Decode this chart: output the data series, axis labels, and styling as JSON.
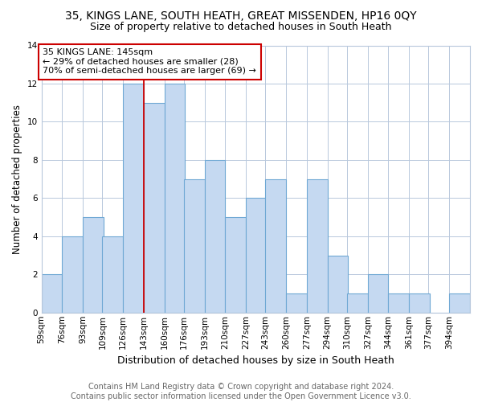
{
  "title": "35, KINGS LANE, SOUTH HEATH, GREAT MISSENDEN, HP16 0QY",
  "subtitle": "Size of property relative to detached houses in South Heath",
  "xlabel": "Distribution of detached houses by size in South Heath",
  "ylabel": "Number of detached properties",
  "bin_labels": [
    "59sqm",
    "76sqm",
    "93sqm",
    "109sqm",
    "126sqm",
    "143sqm",
    "160sqm",
    "176sqm",
    "193sqm",
    "210sqm",
    "227sqm",
    "243sqm",
    "260sqm",
    "277sqm",
    "294sqm",
    "310sqm",
    "327sqm",
    "344sqm",
    "361sqm",
    "377sqm",
    "394sqm"
  ],
  "bin_edges": [
    59,
    76,
    93,
    109,
    126,
    143,
    160,
    176,
    193,
    210,
    227,
    243,
    260,
    277,
    294,
    310,
    327,
    344,
    361,
    377,
    394
  ],
  "counts": [
    2,
    4,
    5,
    4,
    12,
    11,
    12,
    7,
    8,
    5,
    6,
    7,
    1,
    7,
    3,
    1,
    2,
    1,
    1,
    0,
    1
  ],
  "bar_color": "#c5d9f1",
  "bar_edgecolor": "#6fa8d4",
  "vline_x": 143,
  "vline_color": "#cc0000",
  "annotation_text": "35 KINGS LANE: 145sqm\n← 29% of detached houses are smaller (28)\n70% of semi-detached houses are larger (69) →",
  "annotation_box_color": "#ffffff",
  "annotation_box_edgecolor": "#cc0000",
  "ylim": [
    0,
    14
  ],
  "yticks": [
    0,
    2,
    4,
    6,
    8,
    10,
    12,
    14
  ],
  "footer_text": "Contains HM Land Registry data © Crown copyright and database right 2024.\nContains public sector information licensed under the Open Government Licence v3.0.",
  "title_fontsize": 10,
  "subtitle_fontsize": 9,
  "xlabel_fontsize": 9,
  "ylabel_fontsize": 8.5,
  "tick_fontsize": 7.5,
  "annotation_fontsize": 8,
  "footer_fontsize": 7
}
